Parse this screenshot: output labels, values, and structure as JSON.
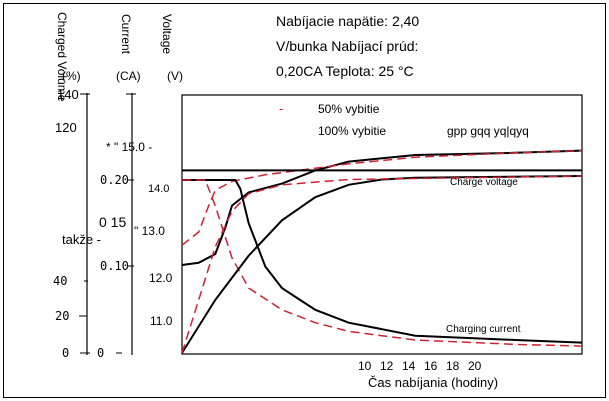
{
  "chart_data": {
    "type": "line",
    "title_lines": [
      "Nabíjacie napätie: 2,40",
      "V/bunka Nabíjací prúd:",
      "0,20CA Teplota: 25 °C"
    ],
    "xlabel": "Čas nabíjania (hodiny)",
    "x_ticks": [
      "10",
      "12",
      "14",
      "16",
      "18",
      "20"
    ],
    "axes": {
      "charged": {
        "label": "Charged Volume",
        "unit": "(%)",
        "ticks": [
          "140",
          "120",
          "40",
          "20",
          "0"
        ]
      },
      "current": {
        "label": "Current",
        "unit": "(CA)",
        "ticks": [
          "0.20",
          "0 15",
          "0.10",
          "0"
        ]
      },
      "voltage": {
        "label": "Voltage",
        "unit": "(V)",
        "ticks": [
          "* \" 15.0 -",
          "14.0",
          "\" 13.0",
          "12.0",
          "11.0"
        ]
      }
    },
    "extra_labels": {
      "takze": "takže -",
      "legend_artifact": "gpp gqq yq|qyq"
    },
    "legend": [
      {
        "name": "50% vybitie",
        "style": "dashed",
        "color": "#cc2233"
      },
      {
        "name": "100% vybitie",
        "style": "solid",
        "color": "#000000"
      }
    ],
    "curve_labels": {
      "charge_voltage": "Charge voltage",
      "charging_current": "Charging current"
    },
    "series": [
      {
        "id": "voltage_100",
        "style": "solid",
        "points": [
          [
            0,
            12.25
          ],
          [
            1,
            12.3
          ],
          [
            2,
            12.5
          ],
          [
            2.6,
            13.1
          ],
          [
            3,
            13.6
          ],
          [
            4,
            13.9
          ],
          [
            6,
            14.1
          ],
          [
            8,
            14.4
          ],
          [
            10,
            14.6
          ],
          [
            14,
            14.75
          ],
          [
            20,
            14.8
          ],
          [
            24,
            14.85
          ]
        ]
      },
      {
        "id": "voltage_50",
        "style": "dashed",
        "points": [
          [
            0,
            12.7
          ],
          [
            1,
            13.0
          ],
          [
            1.6,
            13.6
          ],
          [
            2,
            13.95
          ],
          [
            3,
            14.15
          ],
          [
            5,
            14.3
          ],
          [
            8,
            14.45
          ],
          [
            10,
            14.55
          ],
          [
            14,
            14.7
          ],
          [
            20,
            14.8
          ],
          [
            24,
            14.85
          ]
        ]
      },
      {
        "id": "current_100",
        "style": "solid",
        "points": [
          [
            0,
            0.2
          ],
          [
            3.2,
            0.2
          ],
          [
            3.5,
            0.19
          ],
          [
            4,
            0.15
          ],
          [
            5,
            0.1
          ],
          [
            6,
            0.075
          ],
          [
            8,
            0.05
          ],
          [
            10,
            0.035
          ],
          [
            14,
            0.02
          ],
          [
            20,
            0.015
          ],
          [
            24,
            0.012
          ]
        ]
      },
      {
        "id": "current_50",
        "style": "dashed",
        "points": [
          [
            0,
            0.2
          ],
          [
            1.4,
            0.2
          ],
          [
            2,
            0.17
          ],
          [
            3,
            0.11
          ],
          [
            4,
            0.075
          ],
          [
            6,
            0.05
          ],
          [
            8,
            0.035
          ],
          [
            10,
            0.025
          ],
          [
            14,
            0.015
          ],
          [
            20,
            0.01
          ],
          [
            24,
            0.008
          ]
        ]
      },
      {
        "id": "charged_100",
        "style": "solid",
        "points": [
          [
            0,
            0
          ],
          [
            2,
            30
          ],
          [
            4,
            55
          ],
          [
            6,
            75
          ],
          [
            8,
            88
          ],
          [
            10,
            95
          ],
          [
            12,
            98
          ],
          [
            14,
            99
          ],
          [
            24,
            100
          ]
        ]
      },
      {
        "id": "charged_50",
        "style": "dashed",
        "points": [
          [
            0,
            0
          ],
          [
            1,
            30
          ],
          [
            2,
            60
          ],
          [
            3,
            80
          ],
          [
            4,
            90
          ],
          [
            6,
            95
          ],
          [
            10,
            98
          ],
          [
            24,
            100
          ]
        ]
      },
      {
        "id": "set_voltage",
        "style": "solid",
        "points": [
          [
            0,
            14.4
          ],
          [
            24,
            14.4
          ]
        ]
      }
    ]
  }
}
